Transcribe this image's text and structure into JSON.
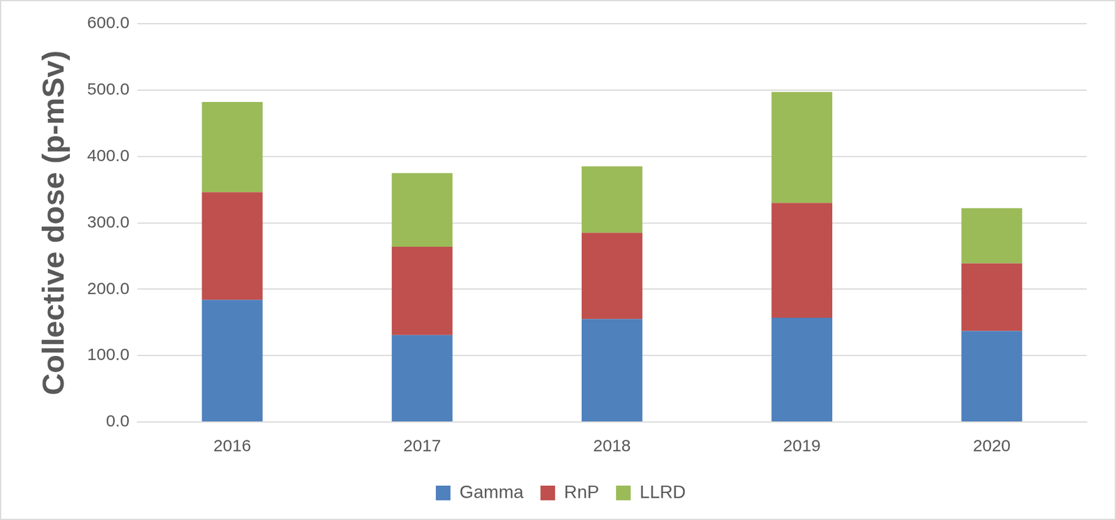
{
  "chart_data": {
    "type": "bar",
    "categories": [
      "2016",
      "2017",
      "2018",
      "2019",
      "2020"
    ],
    "series": [
      {
        "name": "Gamma",
        "color": "#4f81bd",
        "values": [
          184,
          131,
          155,
          157,
          137
        ]
      },
      {
        "name": "RnP",
        "color": "#c0504d",
        "values": [
          162,
          133,
          130,
          173,
          102
        ]
      },
      {
        "name": "LLRD",
        "color": "#9bbb59",
        "values": [
          136,
          111,
          100,
          167,
          83
        ]
      }
    ],
    "y_label": "Collective dose (p-mSv)",
    "ylim": [
      0,
      600
    ],
    "yticks": [
      {
        "value": 0,
        "label": "0.0"
      },
      {
        "value": 100,
        "label": "100.0"
      },
      {
        "value": 200,
        "label": "200.0"
      },
      {
        "value": 300,
        "label": "300.0"
      },
      {
        "value": 400,
        "label": "400.0"
      },
      {
        "value": 500,
        "label": "500.0"
      },
      {
        "value": 600,
        "label": "600.0"
      }
    ],
    "stacked": true,
    "grid": true,
    "legend": "bottom"
  }
}
